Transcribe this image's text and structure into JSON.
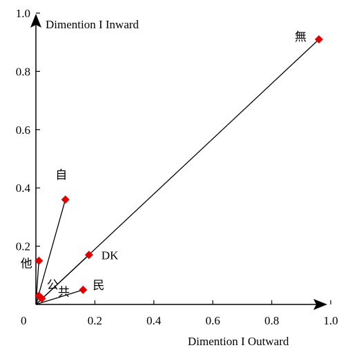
{
  "chart_data": {
    "type": "scatter",
    "x_label": "Dimention I  Outward",
    "y_label": "Dimention I  Inward",
    "xlim": [
      0,
      1.0
    ],
    "ylim": [
      0,
      1.0
    ],
    "x_ticks": [
      "0.2",
      "0.4",
      "0.6",
      "0.8",
      "1.0"
    ],
    "y_ticks": [
      "0.2",
      "0.4",
      "0.6",
      "0.8",
      "1.0"
    ],
    "origin_label": "0",
    "marker_color": "#e00000",
    "points": [
      {
        "label": "無",
        "x": 0.96,
        "y": 0.91
      },
      {
        "label": "自",
        "x": 0.1,
        "y": 0.36
      },
      {
        "label": "DK",
        "x": 0.18,
        "y": 0.17
      },
      {
        "label": "民",
        "x": 0.16,
        "y": 0.05
      },
      {
        "label": "他",
        "x": 0.01,
        "y": 0.15
      },
      {
        "label": "公",
        "x": 0.01,
        "y": 0.03
      },
      {
        "label": "共",
        "x": 0.02,
        "y": 0.02
      }
    ]
  }
}
